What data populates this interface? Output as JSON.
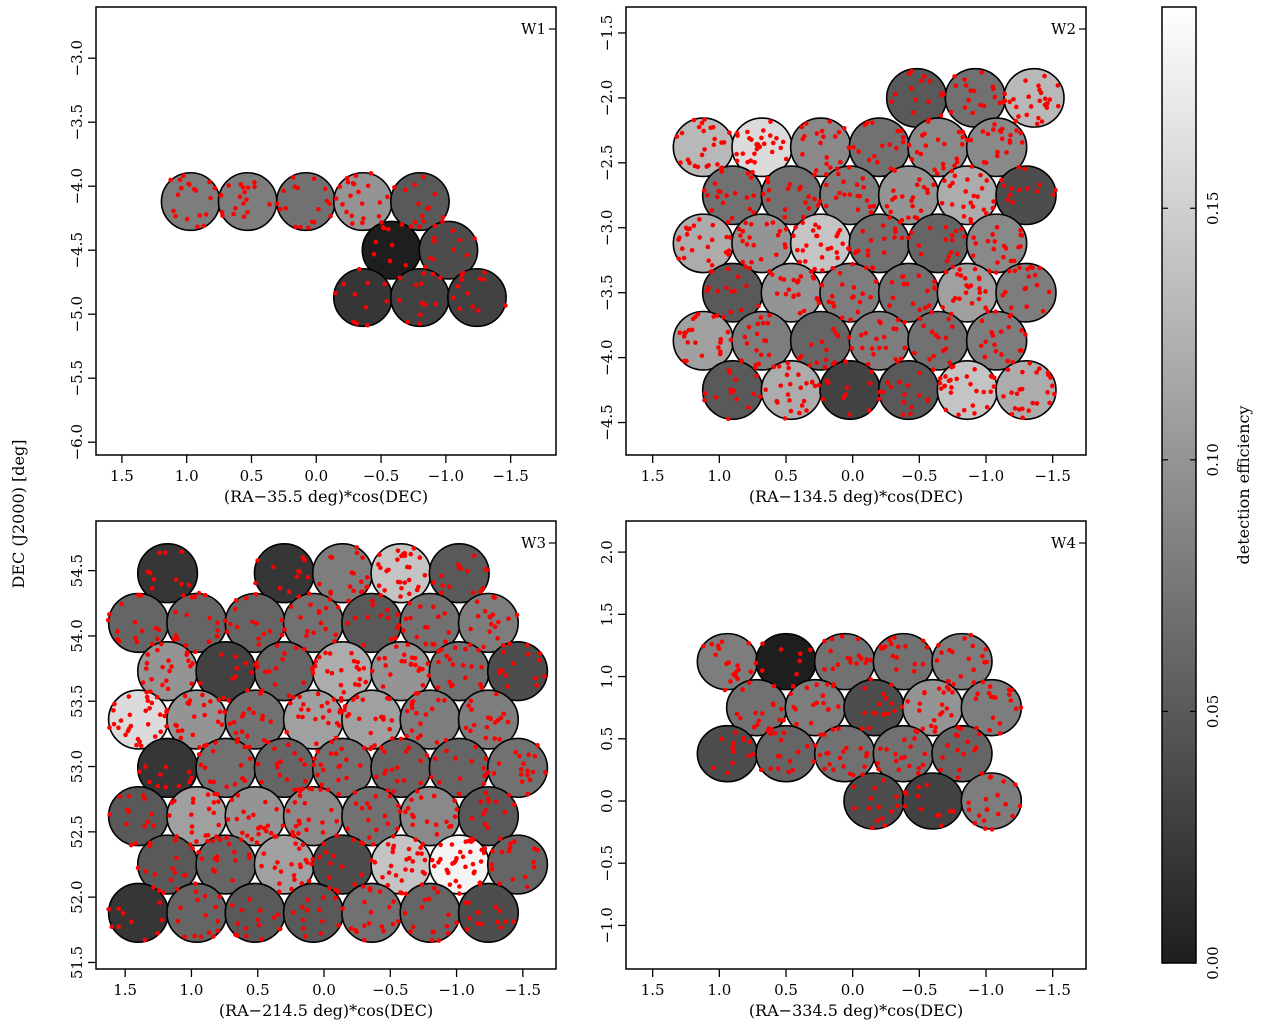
{
  "chart_data": {
    "type": "scatter",
    "figure_ylabel": "DEC (J2000) [deg]",
    "colorbar": {
      "label": "detection efficiency",
      "range": [
        0.0,
        0.19
      ],
      "ticks": [
        0.0,
        0.05,
        0.1,
        0.15
      ],
      "tick_labels": [
        "0.00",
        "0.05",
        "0.10",
        "0.15"
      ],
      "colormap": [
        "#1e1e1e",
        "#ffffff"
      ]
    },
    "marker_color": "#ff0000",
    "panels": [
      {
        "id": "W1",
        "label": "W1",
        "xlabel": "(RA−35.5 deg)*cos(DEC)",
        "xlim": [
          1.7,
          -1.85
        ],
        "ylim": [
          -6.1,
          -2.6
        ],
        "xticks": [
          1.5,
          1.0,
          0.5,
          0.0,
          -0.5,
          -1.0,
          -1.5
        ],
        "xtick_labels": [
          "1.5",
          "1.0",
          "0.5",
          "0.0",
          "−0.5",
          "−1.0",
          "−1.5"
        ],
        "yticks": [
          -6.0,
          -5.5,
          -5.0,
          -4.5,
          -4.0,
          -3.5,
          -3.0
        ],
        "ytick_labels": [
          "−6.0",
          "−5.5",
          "−5.0",
          "−4.5",
          "−4.0",
          "−3.5",
          "−3.0"
        ],
        "pointings": [
          {
            "x": 0.97,
            "y": -4.12,
            "eff": 0.08
          },
          {
            "x": 0.53,
            "y": -4.12,
            "eff": 0.08
          },
          {
            "x": 0.08,
            "y": -4.12,
            "eff": 0.07
          },
          {
            "x": -0.36,
            "y": -4.12,
            "eff": 0.1
          },
          {
            "x": -0.8,
            "y": -4.12,
            "eff": 0.05
          },
          {
            "x": -0.58,
            "y": -4.5,
            "eff": 0.0
          },
          {
            "x": -1.02,
            "y": -4.5,
            "eff": 0.04
          },
          {
            "x": -0.36,
            "y": -4.87,
            "eff": 0.02
          },
          {
            "x": -0.8,
            "y": -4.87,
            "eff": 0.03
          },
          {
            "x": -1.24,
            "y": -4.87,
            "eff": 0.03
          }
        ]
      },
      {
        "id": "W2",
        "label": "W2",
        "xlabel": "(RA−134.5 deg)*cos(DEC)",
        "xlim": [
          1.7,
          -1.75
        ],
        "ylim": [
          -4.75,
          -1.3
        ],
        "xticks": [
          1.5,
          1.0,
          0.5,
          0.0,
          -0.5,
          -1.0,
          -1.5
        ],
        "xtick_labels": [
          "1.5",
          "1.0",
          "0.5",
          "0.0",
          "−0.5",
          "−1.0",
          "−1.5"
        ],
        "yticks": [
          -4.5,
          -4.0,
          -3.5,
          -3.0,
          -2.5,
          -2.0,
          -1.5
        ],
        "ytick_labels": [
          "−4.5",
          "−4.0",
          "−3.5",
          "−3.0",
          "−2.5",
          "−2.0",
          "−1.5"
        ],
        "pointings": [
          {
            "x": -0.48,
            "y": -2.0,
            "eff": 0.05
          },
          {
            "x": -0.92,
            "y": -2.0,
            "eff": 0.07
          },
          {
            "x": -1.36,
            "y": -2.0,
            "eff": 0.13
          },
          {
            "x": 1.12,
            "y": -2.38,
            "eff": 0.13
          },
          {
            "x": 0.68,
            "y": -2.38,
            "eff": 0.16
          },
          {
            "x": 0.24,
            "y": -2.38,
            "eff": 0.09
          },
          {
            "x": -0.2,
            "y": -2.38,
            "eff": 0.07
          },
          {
            "x": -0.64,
            "y": -2.38,
            "eff": 0.09
          },
          {
            "x": -1.08,
            "y": -2.38,
            "eff": 0.09
          },
          {
            "x": 0.9,
            "y": -2.75,
            "eff": 0.07
          },
          {
            "x": 0.46,
            "y": -2.75,
            "eff": 0.07
          },
          {
            "x": 0.02,
            "y": -2.75,
            "eff": 0.08
          },
          {
            "x": -0.42,
            "y": -2.75,
            "eff": 0.1
          },
          {
            "x": -0.86,
            "y": -2.75,
            "eff": 0.12
          },
          {
            "x": -1.3,
            "y": -2.75,
            "eff": 0.04
          },
          {
            "x": 1.12,
            "y": -3.12,
            "eff": 0.12
          },
          {
            "x": 0.68,
            "y": -3.12,
            "eff": 0.1
          },
          {
            "x": 0.24,
            "y": -3.12,
            "eff": 0.14
          },
          {
            "x": -0.2,
            "y": -3.12,
            "eff": 0.07
          },
          {
            "x": -0.64,
            "y": -3.12,
            "eff": 0.06
          },
          {
            "x": -1.08,
            "y": -3.12,
            "eff": 0.09
          },
          {
            "x": 0.9,
            "y": -3.5,
            "eff": 0.05
          },
          {
            "x": 0.46,
            "y": -3.5,
            "eff": 0.1
          },
          {
            "x": 0.02,
            "y": -3.5,
            "eff": 0.08
          },
          {
            "x": -0.42,
            "y": -3.5,
            "eff": 0.07
          },
          {
            "x": -0.86,
            "y": -3.5,
            "eff": 0.11
          },
          {
            "x": -1.3,
            "y": -3.5,
            "eff": 0.08
          },
          {
            "x": 1.12,
            "y": -3.87,
            "eff": 0.11
          },
          {
            "x": 0.68,
            "y": -3.87,
            "eff": 0.08
          },
          {
            "x": 0.24,
            "y": -3.87,
            "eff": 0.06
          },
          {
            "x": -0.2,
            "y": -3.87,
            "eff": 0.08
          },
          {
            "x": -0.64,
            "y": -3.87,
            "eff": 0.07
          },
          {
            "x": -1.08,
            "y": -3.87,
            "eff": 0.08
          },
          {
            "x": 0.9,
            "y": -4.25,
            "eff": 0.05
          },
          {
            "x": 0.46,
            "y": -4.25,
            "eff": 0.12
          },
          {
            "x": 0.02,
            "y": -4.25,
            "eff": 0.03
          },
          {
            "x": -0.42,
            "y": -4.25,
            "eff": 0.05
          },
          {
            "x": -0.86,
            "y": -4.25,
            "eff": 0.14
          },
          {
            "x": -1.3,
            "y": -4.25,
            "eff": 0.12
          }
        ]
      },
      {
        "id": "W3",
        "label": "W3",
        "xlabel": "(RA−214.5 deg)*cos(DEC)",
        "xlim": [
          1.72,
          -1.75
        ],
        "ylim": [
          51.45,
          54.88
        ],
        "xticks": [
          1.5,
          1.0,
          0.5,
          0.0,
          -0.5,
          -1.0,
          -1.5
        ],
        "xtick_labels": [
          "1.5",
          "1.0",
          "0.5",
          "0.0",
          "−0.5",
          "−1.0",
          "−1.5"
        ],
        "yticks": [
          51.5,
          52.0,
          52.5,
          53.0,
          53.5,
          54.0,
          54.5
        ],
        "ytick_labels": [
          "51.5",
          "52.0",
          "52.5",
          "53.0",
          "53.5",
          "54.0",
          "54.5"
        ],
        "pointings": [
          {
            "x": 1.18,
            "y": 54.48,
            "eff": 0.02
          },
          {
            "x": 0.3,
            "y": 54.48,
            "eff": 0.02
          },
          {
            "x": -0.14,
            "y": 54.48,
            "eff": 0.08
          },
          {
            "x": -0.58,
            "y": 54.48,
            "eff": 0.14
          },
          {
            "x": -1.02,
            "y": 54.48,
            "eff": 0.05
          },
          {
            "x": 1.4,
            "y": 54.1,
            "eff": 0.06
          },
          {
            "x": 0.96,
            "y": 54.1,
            "eff": 0.06
          },
          {
            "x": 0.52,
            "y": 54.1,
            "eff": 0.06
          },
          {
            "x": 0.08,
            "y": 54.1,
            "eff": 0.07
          },
          {
            "x": -0.36,
            "y": 54.1,
            "eff": 0.05
          },
          {
            "x": -0.8,
            "y": 54.1,
            "eff": 0.07
          },
          {
            "x": -1.24,
            "y": 54.1,
            "eff": 0.08
          },
          {
            "x": 1.18,
            "y": 53.73,
            "eff": 0.1
          },
          {
            "x": 0.74,
            "y": 53.73,
            "eff": 0.03
          },
          {
            "x": 0.3,
            "y": 53.73,
            "eff": 0.06
          },
          {
            "x": -0.14,
            "y": 53.73,
            "eff": 0.12
          },
          {
            "x": -0.58,
            "y": 53.73,
            "eff": 0.1
          },
          {
            "x": -1.02,
            "y": 53.73,
            "eff": 0.07
          },
          {
            "x": -1.46,
            "y": 53.73,
            "eff": 0.04
          },
          {
            "x": 1.4,
            "y": 53.36,
            "eff": 0.16
          },
          {
            "x": 0.96,
            "y": 53.36,
            "eff": 0.1
          },
          {
            "x": 0.52,
            "y": 53.36,
            "eff": 0.07
          },
          {
            "x": 0.08,
            "y": 53.36,
            "eff": 0.11
          },
          {
            "x": -0.36,
            "y": 53.36,
            "eff": 0.11
          },
          {
            "x": -0.8,
            "y": 53.36,
            "eff": 0.08
          },
          {
            "x": -1.24,
            "y": 53.36,
            "eff": 0.08
          },
          {
            "x": 1.18,
            "y": 52.99,
            "eff": 0.02
          },
          {
            "x": 0.74,
            "y": 52.99,
            "eff": 0.07
          },
          {
            "x": 0.3,
            "y": 52.99,
            "eff": 0.06
          },
          {
            "x": -0.14,
            "y": 52.99,
            "eff": 0.07
          },
          {
            "x": -0.58,
            "y": 52.99,
            "eff": 0.06
          },
          {
            "x": -1.02,
            "y": 52.99,
            "eff": 0.06
          },
          {
            "x": -1.46,
            "y": 52.99,
            "eff": 0.07
          },
          {
            "x": 1.4,
            "y": 52.62,
            "eff": 0.05
          },
          {
            "x": 0.96,
            "y": 52.62,
            "eff": 0.11
          },
          {
            "x": 0.52,
            "y": 52.62,
            "eff": 0.1
          },
          {
            "x": 0.08,
            "y": 52.62,
            "eff": 0.09
          },
          {
            "x": -0.36,
            "y": 52.62,
            "eff": 0.07
          },
          {
            "x": -0.8,
            "y": 52.62,
            "eff": 0.09
          },
          {
            "x": -1.24,
            "y": 52.62,
            "eff": 0.05
          },
          {
            "x": 1.18,
            "y": 52.25,
            "eff": 0.05
          },
          {
            "x": 0.74,
            "y": 52.25,
            "eff": 0.06
          },
          {
            "x": 0.3,
            "y": 52.25,
            "eff": 0.11
          },
          {
            "x": -0.14,
            "y": 52.25,
            "eff": 0.04
          },
          {
            "x": -0.58,
            "y": 52.25,
            "eff": 0.14
          },
          {
            "x": -1.02,
            "y": 52.25,
            "eff": 0.18
          },
          {
            "x": -1.46,
            "y": 52.25,
            "eff": 0.06
          },
          {
            "x": 1.4,
            "y": 51.88,
            "eff": 0.02
          },
          {
            "x": 0.96,
            "y": 51.88,
            "eff": 0.06
          },
          {
            "x": 0.52,
            "y": 51.88,
            "eff": 0.05
          },
          {
            "x": 0.08,
            "y": 51.88,
            "eff": 0.05
          },
          {
            "x": -0.36,
            "y": 51.88,
            "eff": 0.07
          },
          {
            "x": -0.8,
            "y": 51.88,
            "eff": 0.06
          },
          {
            "x": -1.24,
            "y": 51.88,
            "eff": 0.04
          }
        ]
      },
      {
        "id": "W4",
        "label": "W4",
        "xlabel": "(RA−334.5 deg)*cos(DEC)",
        "xlim": [
          1.7,
          -1.75
        ],
        "ylim": [
          -1.35,
          2.25
        ],
        "xticks": [
          1.5,
          1.0,
          0.5,
          0.0,
          -0.5,
          -1.0,
          -1.5
        ],
        "xtick_labels": [
          "1.5",
          "1.0",
          "0.5",
          "0.0",
          "−0.5",
          "−1.0",
          "−1.5"
        ],
        "yticks": [
          -1.0,
          -0.5,
          0.0,
          0.5,
          1.0,
          1.5,
          2.0
        ],
        "ytick_labels": [
          "−1.0",
          "−0.5",
          "0.0",
          "0.5",
          "1.0",
          "1.5",
          "2.0"
        ],
        "pointings": [
          {
            "x": 0.94,
            "y": 1.12,
            "eff": 0.08
          },
          {
            "x": 0.5,
            "y": 1.12,
            "eff": 0.0
          },
          {
            "x": 0.06,
            "y": 1.12,
            "eff": 0.07
          },
          {
            "x": -0.38,
            "y": 1.12,
            "eff": 0.07
          },
          {
            "x": -0.82,
            "y": 1.12,
            "eff": 0.08
          },
          {
            "x": 0.72,
            "y": 0.75,
            "eff": 0.07
          },
          {
            "x": 0.28,
            "y": 0.75,
            "eff": 0.08
          },
          {
            "x": -0.16,
            "y": 0.75,
            "eff": 0.04
          },
          {
            "x": -0.6,
            "y": 0.75,
            "eff": 0.1
          },
          {
            "x": -1.04,
            "y": 0.75,
            "eff": 0.08
          },
          {
            "x": 0.94,
            "y": 0.38,
            "eff": 0.04
          },
          {
            "x": 0.5,
            "y": 0.38,
            "eff": 0.06
          },
          {
            "x": 0.06,
            "y": 0.38,
            "eff": 0.07
          },
          {
            "x": -0.38,
            "y": 0.38,
            "eff": 0.07
          },
          {
            "x": -0.82,
            "y": 0.38,
            "eff": 0.06
          },
          {
            "x": -0.16,
            "y": 0.0,
            "eff": 0.04
          },
          {
            "x": -0.6,
            "y": 0.0,
            "eff": 0.03
          },
          {
            "x": -1.04,
            "y": 0.0,
            "eff": 0.08
          }
        ]
      }
    ]
  }
}
